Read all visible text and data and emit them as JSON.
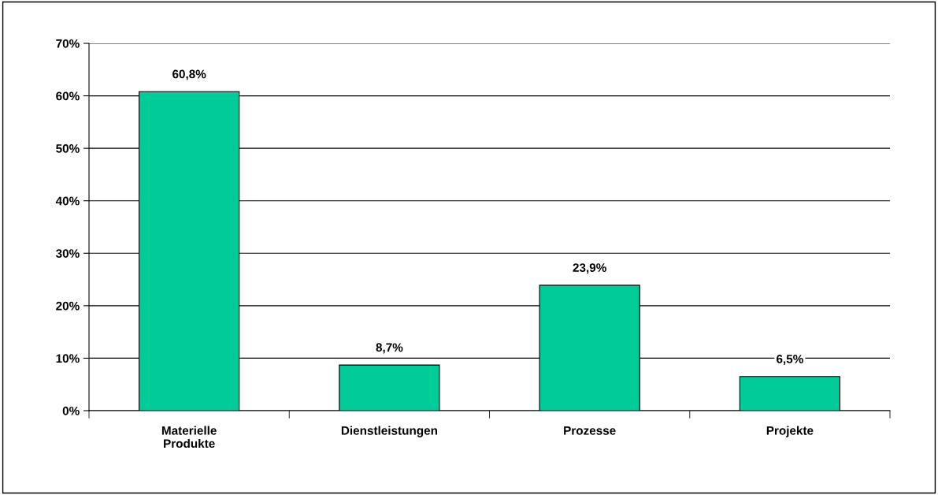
{
  "chart_data": {
    "type": "bar",
    "categories": [
      "Materielle\nProdukte",
      "Dienstleistungen",
      "Prozesse",
      "Projekte"
    ],
    "values": [
      60.8,
      8.7,
      23.9,
      6.5
    ],
    "value_labels": [
      "60,8%",
      "8,7%",
      "23,9%",
      "6,5%"
    ],
    "color": "#00cc99",
    "ylim": [
      0,
      70
    ],
    "yticks": [
      {
        "value": 0,
        "label": "0%"
      },
      {
        "value": 10,
        "label": "10%"
      },
      {
        "value": 20,
        "label": "20%"
      },
      {
        "value": 30,
        "label": "30%"
      },
      {
        "value": 40,
        "label": "40%"
      },
      {
        "value": 50,
        "label": "50%"
      },
      {
        "value": 60,
        "label": "60%"
      },
      {
        "value": 70,
        "label": "70%"
      }
    ],
    "grid": "y",
    "legend": false
  }
}
